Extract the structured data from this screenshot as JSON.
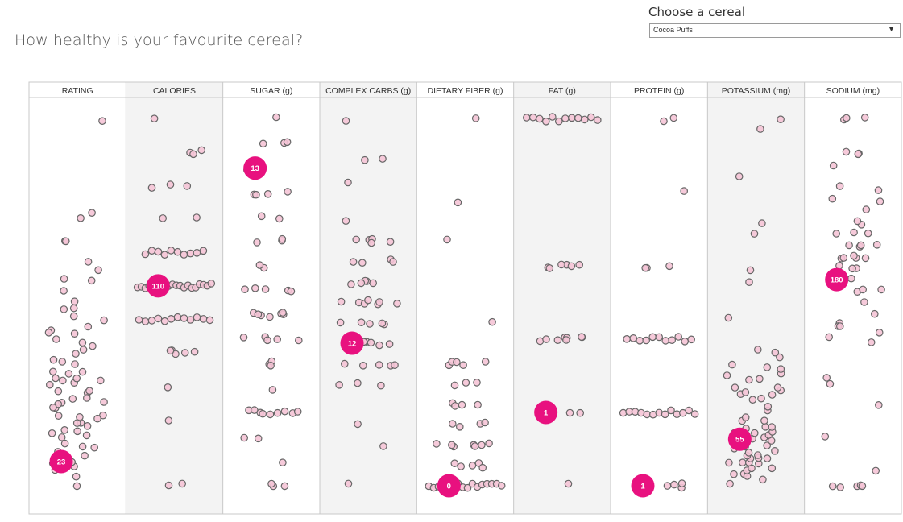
{
  "header": {
    "title": "How healthy is your favourite cereal?"
  },
  "filter": {
    "label": "Choose a cereal",
    "selected": "Cocoa Puffs",
    "arrow_icon": "triangle-down-icon"
  },
  "colors": {
    "dot_fill": "#f5c4d6",
    "dot_stroke": "#666666",
    "highlight": "#e8117f",
    "band": "#f3f3f3",
    "border": "#c8c8c8"
  },
  "chart_data": {
    "type": "scatter",
    "layout": "strip-plot columns, value increases upward",
    "selected_cereal": "Cocoa Puffs",
    "columns": [
      {
        "header": "RATING",
        "highlight": 23,
        "values": [
          93.7,
          74.5,
          72.8,
          68.4,
          68.4,
          64.5,
          63.0,
          61.0,
          60.0,
          58.0,
          56.0,
          55.0,
          54.9,
          53.0,
          52.0,
          51.0,
          50.0,
          49.5,
          49.0,
          48.0,
          47.5,
          47.0,
          46.0,
          45.0,
          44.5,
          44.0,
          43.5,
          42.0,
          41.5,
          41.0,
          40.5,
          40.0,
          40.0,
          39.5,
          39.0,
          38.5,
          38.0,
          37.8,
          37.0,
          36.5,
          36.0,
          35.5,
          35.0,
          34.4,
          34.0,
          33.7,
          33.0,
          32.5,
          32.0,
          31.5,
          31.0,
          30.5,
          30.0,
          29.5,
          29.0,
          28.7,
          28.0,
          27.8,
          27.0,
          26.0,
          25.5,
          24.5,
          23.8,
          23.0,
          22.5,
          22.0,
          21.0,
          19.8,
          18.0
        ]
      },
      {
        "header": "CALORIES",
        "highlight": 110,
        "values": [
          50,
          50,
          70,
          80,
          90,
          90,
          90,
          90,
          90,
          100,
          100,
          100,
          100,
          100,
          100,
          100,
          100,
          100,
          100,
          100,
          100,
          110,
          110,
          110,
          110,
          110,
          110,
          110,
          110,
          110,
          110,
          110,
          110,
          110,
          110,
          110,
          110,
          110,
          110,
          110,
          110,
          120,
          120,
          120,
          120,
          120,
          120,
          120,
          120,
          120,
          120,
          130,
          130,
          140,
          140,
          140,
          150,
          150,
          150,
          160
        ]
      },
      {
        "header": "SUGAR (g)",
        "highlight": 13,
        "values": [
          0,
          0,
          0,
          1,
          2,
          2,
          3,
          3,
          3,
          3,
          3,
          3,
          3,
          3,
          3,
          4,
          5,
          5,
          5,
          6,
          6,
          6,
          6,
          6,
          7,
          7,
          7,
          7,
          7,
          7,
          7,
          8,
          8,
          8,
          8,
          8,
          9,
          9,
          10,
          10,
          10,
          11,
          11,
          12,
          12,
          12,
          12,
          13,
          13,
          13,
          14,
          14,
          14,
          15
        ]
      },
      {
        "header": "COMPLEX CARBS (g)",
        "highlight": 12,
        "values": [
          5,
          7,
          8,
          10,
          10,
          10,
          11,
          11,
          11,
          11,
          11,
          12,
          12,
          12,
          12,
          12,
          12,
          13,
          13,
          13,
          13,
          13,
          14,
          14,
          14,
          14,
          14,
          14,
          14,
          15,
          15,
          15,
          15,
          15,
          16,
          16,
          16,
          16,
          17,
          17,
          17,
          17,
          17,
          18,
          20,
          21,
          21,
          23
        ]
      },
      {
        "header": "DIETARY FIBER (g)",
        "highlight": 0,
        "values": [
          0,
          0,
          0,
          0,
          0,
          0,
          0,
          0,
          0,
          0,
          0,
          0,
          0,
          0,
          0,
          0,
          0.5,
          0.5,
          0.5,
          0.5,
          0.5,
          1,
          1,
          1,
          1,
          1,
          1,
          1,
          1.5,
          1.5,
          1.5,
          1.5,
          2,
          2,
          2,
          2,
          2.5,
          2.5,
          2.5,
          3,
          3,
          3,
          3,
          3,
          4,
          6,
          7,
          9
        ]
      },
      {
        "header": "FAT (g)",
        "highlight": 1,
        "values": [
          0,
          1,
          1,
          1,
          1,
          2,
          2,
          2,
          2,
          2,
          2,
          2,
          2,
          3,
          3,
          3,
          3,
          3,
          3,
          5,
          5,
          5,
          5,
          5,
          5,
          5,
          5,
          5,
          5,
          5,
          5
        ]
      },
      {
        "header": "PROTEIN (g)",
        "highlight": 1,
        "values": [
          1,
          1,
          1,
          1,
          1,
          1,
          1,
          2,
          2,
          2,
          2,
          2,
          2,
          2,
          2,
          2,
          2,
          2,
          2,
          2,
          3,
          3,
          3,
          3,
          3,
          3,
          3,
          3,
          3,
          3,
          3,
          4,
          4,
          4,
          5,
          6,
          6
        ]
      },
      {
        "header": "POTASSIUM (mg)",
        "highlight": 55,
        "values": [
          15,
          20,
          25,
          25,
          25,
          30,
          30,
          30,
          35,
          35,
          35,
          35,
          40,
          40,
          40,
          40,
          40,
          45,
          45,
          45,
          50,
          50,
          50,
          55,
          55,
          55,
          55,
          55,
          60,
          60,
          60,
          60,
          60,
          65,
          65,
          65,
          70,
          70,
          75,
          80,
          85,
          90,
          90,
          95,
          95,
          95,
          95,
          100,
          100,
          105,
          105,
          110,
          110,
          115,
          115,
          120,
          125,
          130,
          130,
          160,
          190,
          200,
          230,
          240,
          280,
          320,
          330
        ]
      },
      {
        "header": "SODIUM (mg)",
        "highlight": 180,
        "values": [
          0,
          0,
          0,
          0,
          0,
          15,
          45,
          70,
          90,
          95,
          125,
          130,
          135,
          140,
          140,
          140,
          150,
          160,
          170,
          170,
          170,
          180,
          180,
          180,
          180,
          190,
          190,
          190,
          200,
          200,
          200,
          200,
          200,
          210,
          210,
          210,
          210,
          220,
          220,
          220,
          230,
          230,
          240,
          250,
          250,
          260,
          260,
          280,
          290,
          290,
          290,
          320,
          320,
          320
        ]
      }
    ]
  }
}
